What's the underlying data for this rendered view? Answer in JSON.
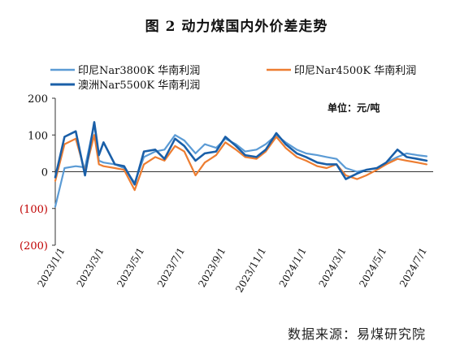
{
  "chart_data": {
    "type": "line",
    "title": "图 2   动力煤国内外价差走势",
    "unit_label": "单位：元/吨",
    "source": "数据来源：易煤研究院",
    "x": [
      "2023-01-01",
      "2023-01-15",
      "2023-02-01",
      "2023-02-15",
      "2023-03-01",
      "2023-03-08",
      "2023-03-15",
      "2023-04-01",
      "2023-04-15",
      "2023-05-01",
      "2023-05-15",
      "2023-06-01",
      "2023-06-15",
      "2023-07-01",
      "2023-07-15",
      "2023-08-01",
      "2023-08-15",
      "2023-09-01",
      "2023-09-15",
      "2023-10-01",
      "2023-10-15",
      "2023-11-01",
      "2023-11-15",
      "2023-12-01",
      "2023-12-15",
      "2024-01-01",
      "2024-01-15",
      "2024-02-01",
      "2024-02-15",
      "2024-03-01",
      "2024-03-15",
      "2024-04-01",
      "2024-04-15",
      "2024-05-01",
      "2024-05-15",
      "2024-06-01",
      "2024-06-15",
      "2024-07-01",
      "2024-07-15"
    ],
    "x_tick_labels": [
      "2023/1/1",
      "2023/3/1",
      "2023/5/1",
      "2023/7/1",
      "2023/9/1",
      "2023/11/1",
      "2024/1/1",
      "2024/3/1",
      "2024/5/1",
      "2024/7/1"
    ],
    "y_tick_labels": [
      "200",
      "100",
      "0",
      "(100)",
      "(200)"
    ],
    "ylim": [
      -200,
      200
    ],
    "series": [
      {
        "name": "印尼Nar3800K 华南利润",
        "color": "#5b9bd5",
        "values": [
          -95,
          10,
          15,
          12,
          130,
          30,
          25,
          20,
          10,
          -30,
          40,
          55,
          60,
          100,
          85,
          50,
          75,
          65,
          90,
          75,
          55,
          60,
          75,
          100,
          80,
          60,
          50,
          45,
          40,
          35,
          10,
          0,
          5,
          10,
          25,
          40,
          50,
          45,
          42
        ]
      },
      {
        "name": "印尼Nar4500K 华南利润",
        "color": "#ed7d31",
        "values": [
          -25,
          75,
          90,
          0,
          100,
          20,
          15,
          10,
          5,
          -50,
          20,
          40,
          30,
          70,
          55,
          -10,
          25,
          45,
          80,
          60,
          40,
          35,
          55,
          95,
          65,
          40,
          30,
          15,
          10,
          20,
          -10,
          -20,
          -10,
          5,
          20,
          35,
          30,
          25,
          20
        ]
      },
      {
        "name": "澳洲Nar5500K 华南利润",
        "color": "#1a5fa8",
        "values": [
          -15,
          95,
          110,
          -10,
          135,
          45,
          80,
          20,
          15,
          -35,
          55,
          60,
          35,
          90,
          70,
          30,
          50,
          55,
          95,
          70,
          45,
          40,
          60,
          105,
          75,
          50,
          40,
          25,
          20,
          20,
          -20,
          -5,
          5,
          10,
          25,
          60,
          40,
          35,
          30
        ]
      }
    ]
  }
}
